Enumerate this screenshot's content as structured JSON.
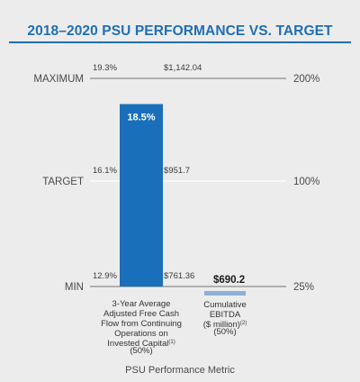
{
  "chart_data": {
    "type": "bar",
    "title": "2018–2020 PSU PERFORMANCE VS. TARGET",
    "xlabel": "PSU Performance Metric",
    "levels": [
      {
        "name": "MAXIMUM",
        "payout": "200%",
        "metric1": "19.3%",
        "metric2": "$1,142.04"
      },
      {
        "name": "TARGET",
        "payout": "100%",
        "metric1": "16.1%",
        "metric2": "$951.7"
      },
      {
        "name": "MIN",
        "payout": "25%",
        "metric1": "12.9%",
        "metric2": "$761.36"
      }
    ],
    "bars": [
      {
        "category_lines": [
          "3-Year Average",
          "Adjusted Free Cash",
          "Flow from Continuing",
          "Operations on",
          "Invested Capital",
          "(50%)"
        ],
        "footnote": "(1)",
        "value": 18.5,
        "value_label": "18.5%",
        "min": 12.9,
        "max": 19.3,
        "color": "#1a6fba"
      },
      {
        "category_lines": [
          "Cumulative",
          "EBITDA",
          "($ million)",
          "(50%)"
        ],
        "footnote": "(2)",
        "value": 690.2,
        "value_label": "$690.2",
        "min": 761.36,
        "max": 1142.04,
        "color": "#8eb0d8"
      }
    ]
  }
}
